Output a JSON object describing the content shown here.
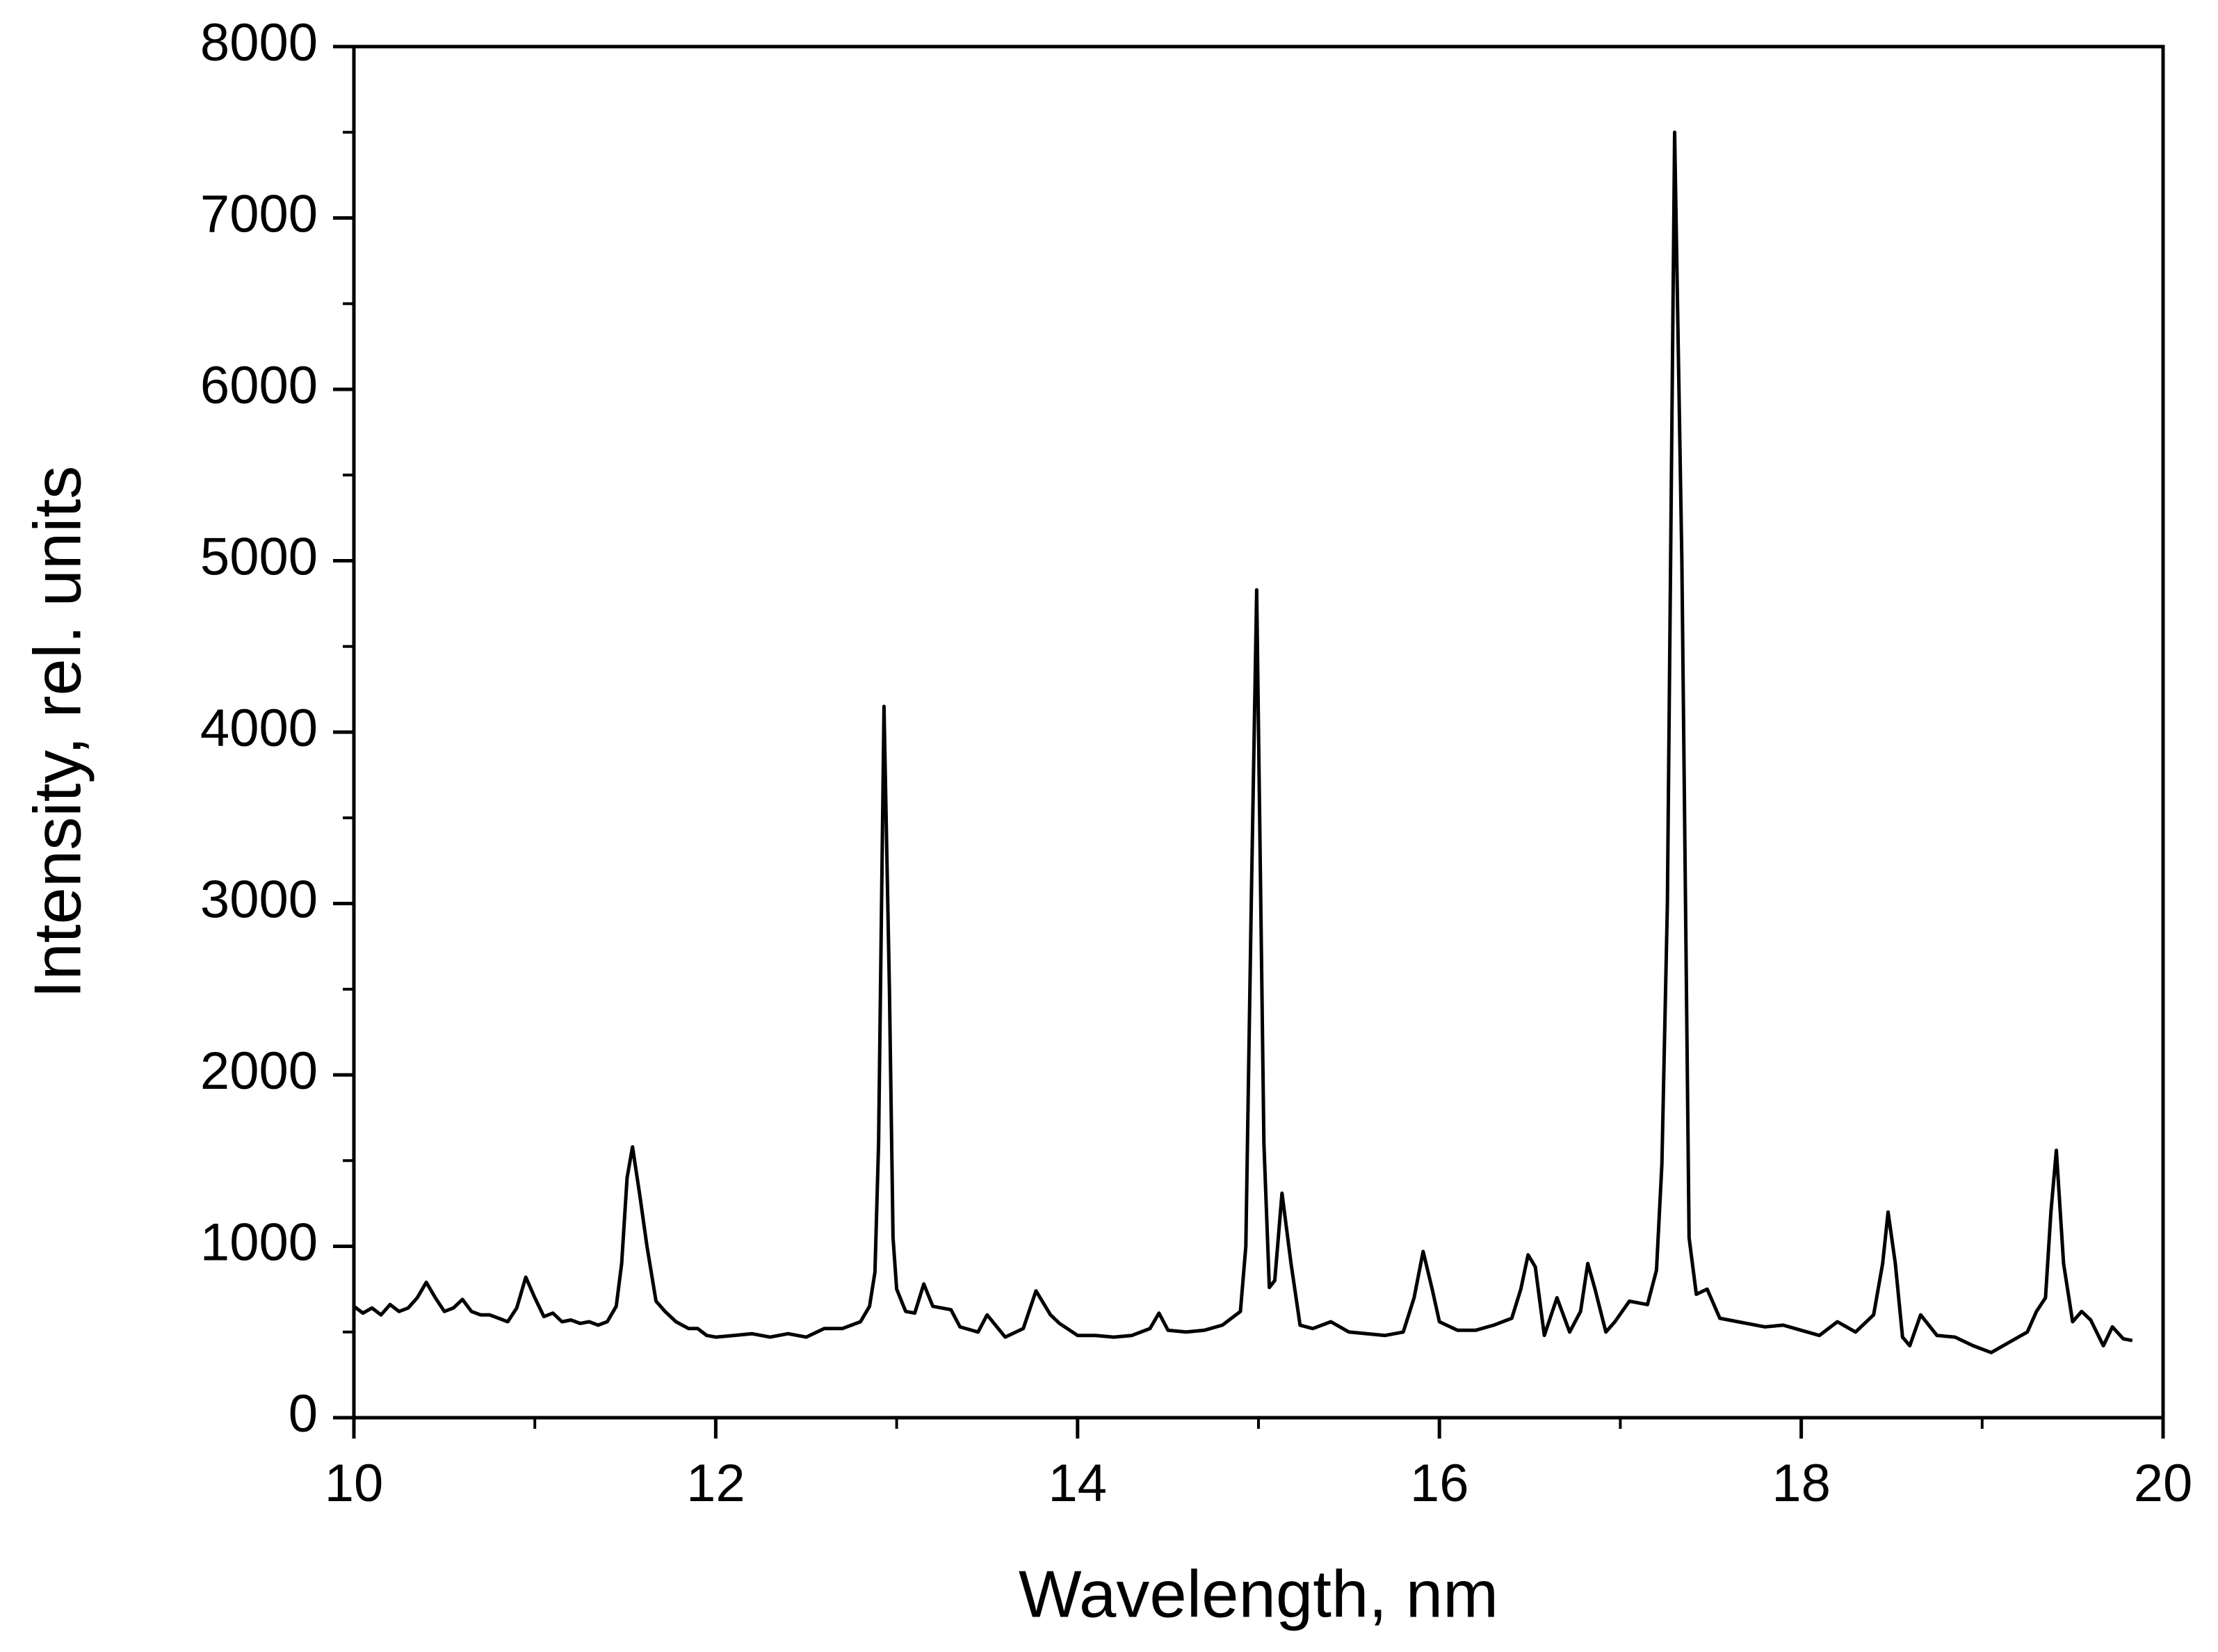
{
  "chart_data": {
    "type": "line",
    "xlabel": "Wavelength, nm",
    "ylabel": "Intensity, rel. units",
    "xlim": [
      10,
      20
    ],
    "xticks": [
      10,
      12,
      14,
      16,
      18,
      20
    ],
    "ylim": [
      0,
      8000
    ],
    "yticks": [
      0,
      1000,
      2000,
      3000,
      4000,
      5000,
      6000,
      7000,
      8000
    ],
    "grid": false,
    "series": [
      {
        "color": "#000000",
        "x": [
          10.0,
          10.05,
          10.1,
          10.15,
          10.2,
          10.25,
          10.3,
          10.35,
          10.4,
          10.45,
          10.5,
          10.55,
          10.6,
          10.65,
          10.7,
          10.75,
          10.8,
          10.85,
          10.9,
          10.95,
          11.0,
          11.05,
          11.1,
          11.15,
          11.2,
          11.25,
          11.3,
          11.35,
          11.4,
          11.45,
          11.48,
          11.51,
          11.54,
          11.58,
          11.62,
          11.67,
          11.72,
          11.78,
          11.85,
          11.9,
          11.95,
          12.0,
          12.1,
          12.2,
          12.3,
          12.4,
          12.5,
          12.6,
          12.7,
          12.8,
          12.85,
          12.88,
          12.9,
          12.93,
          12.96,
          12.98,
          13.0,
          13.05,
          13.1,
          13.15,
          13.2,
          13.3,
          13.35,
          13.45,
          13.5,
          13.6,
          13.7,
          13.77,
          13.85,
          13.9,
          14.0,
          14.1,
          14.2,
          14.3,
          14.4,
          14.45,
          14.5,
          14.6,
          14.7,
          14.8,
          14.9,
          14.93,
          14.96,
          14.99,
          15.03,
          15.06,
          15.09,
          15.13,
          15.18,
          15.23,
          15.3,
          15.4,
          15.5,
          15.6,
          15.7,
          15.8,
          15.86,
          15.91,
          15.96,
          16.0,
          16.1,
          16.2,
          16.3,
          16.4,
          16.45,
          16.49,
          16.53,
          16.58,
          16.65,
          16.72,
          16.78,
          16.82,
          16.86,
          16.92,
          16.97,
          17.05,
          17.15,
          17.2,
          17.23,
          17.26,
          17.3,
          17.34,
          17.38,
          17.42,
          17.48,
          17.55,
          17.65,
          17.8,
          17.9,
          18.0,
          18.1,
          18.2,
          18.3,
          18.4,
          18.45,
          18.48,
          18.52,
          18.56,
          18.6,
          18.66,
          18.75,
          18.85,
          18.95,
          19.05,
          19.15,
          19.25,
          19.3,
          19.35,
          19.38,
          19.41,
          19.45,
          19.5,
          19.55,
          19.6,
          19.67,
          19.72,
          19.78,
          19.83
        ],
        "values": [
          650,
          610,
          640,
          600,
          660,
          620,
          640,
          700,
          790,
          700,
          620,
          640,
          690,
          620,
          600,
          600,
          580,
          560,
          640,
          820,
          700,
          590,
          610,
          560,
          570,
          550,
          560,
          540,
          560,
          650,
          900,
          1400,
          1580,
          1300,
          1000,
          680,
          620,
          560,
          520,
          520,
          480,
          470,
          480,
          490,
          470,
          490,
          470,
          520,
          520,
          560,
          650,
          850,
          1600,
          4150,
          2500,
          1050,
          750,
          620,
          610,
          780,
          650,
          630,
          530,
          500,
          600,
          470,
          520,
          740,
          600,
          550,
          480,
          480,
          470,
          480,
          520,
          610,
          510,
          500,
          510,
          540,
          620,
          1000,
          3000,
          4830,
          1600,
          760,
          800,
          1310,
          900,
          540,
          520,
          560,
          500,
          490,
          480,
          500,
          700,
          970,
          750,
          560,
          510,
          510,
          540,
          580,
          750,
          950,
          880,
          480,
          700,
          500,
          620,
          900,
          750,
          500,
          560,
          680,
          660,
          860,
          1480,
          3000,
          7500,
          5000,
          1050,
          720,
          750,
          580,
          560,
          530,
          540,
          510,
          480,
          560,
          500,
          600,
          900,
          1200,
          900,
          470,
          420,
          600,
          480,
          470,
          420,
          380,
          440,
          500,
          620,
          700,
          1200,
          1560,
          900,
          560,
          620,
          570,
          420,
          530,
          460,
          450
        ]
      }
    ]
  }
}
